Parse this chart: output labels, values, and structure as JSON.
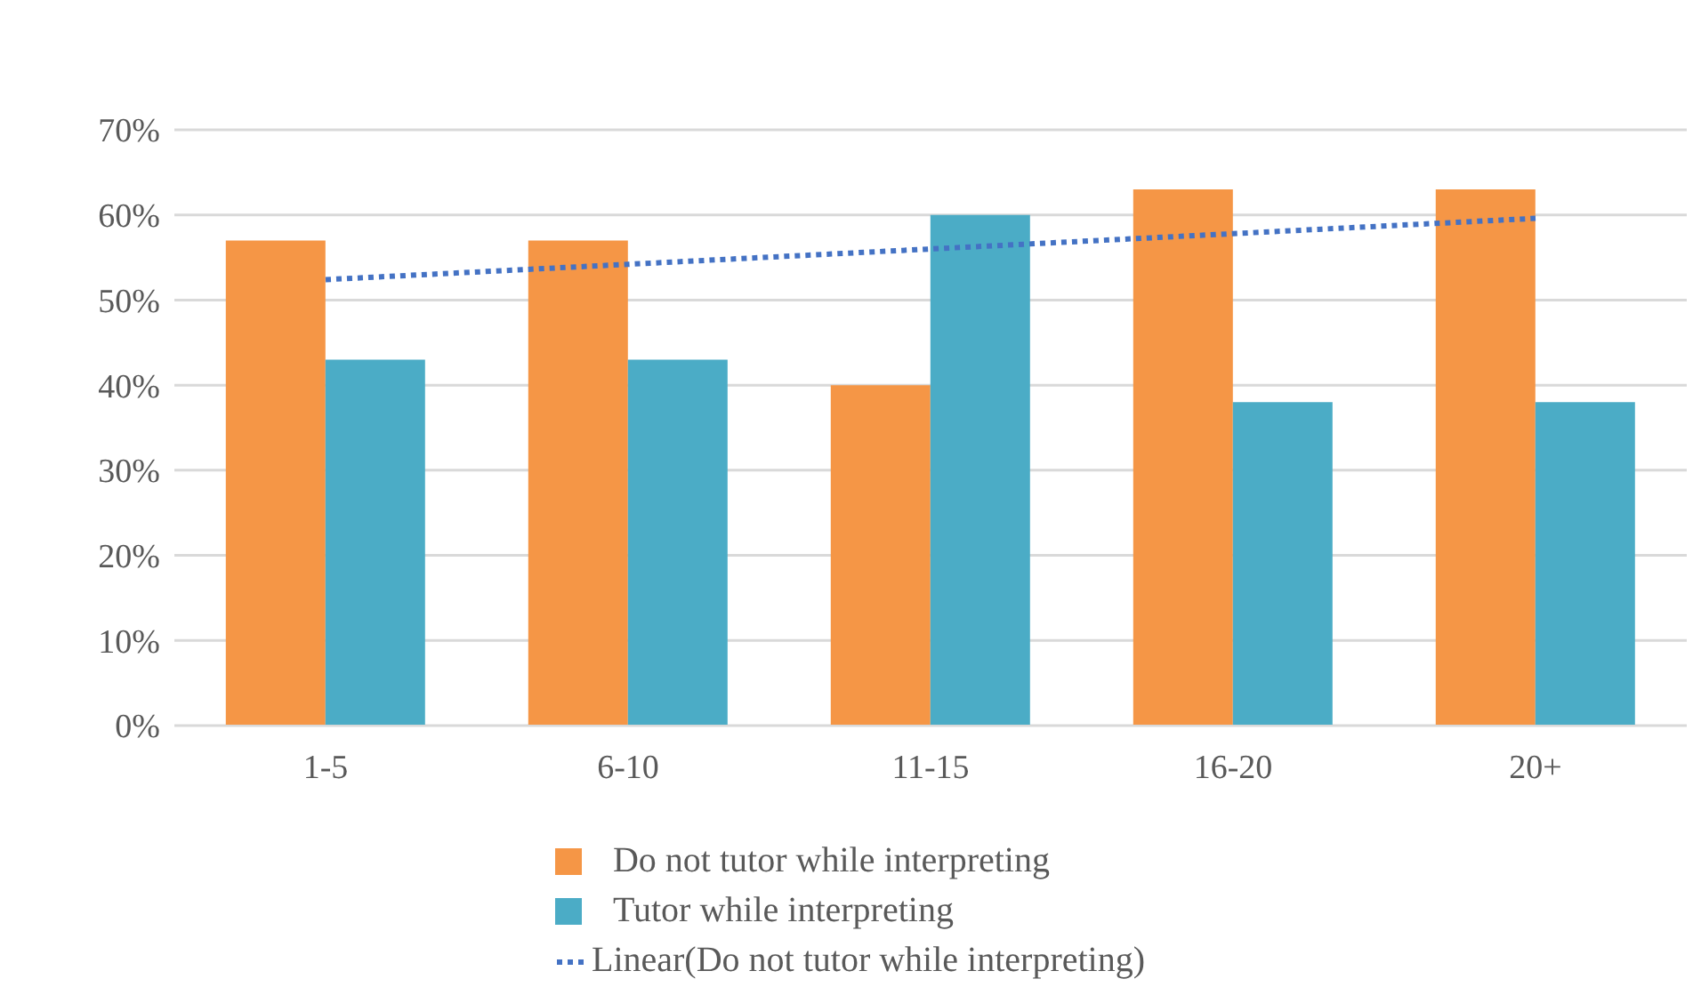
{
  "chart_data": {
    "type": "bar",
    "categories": [
      "1-5",
      "6-10",
      "11-15",
      "16-20",
      "20+"
    ],
    "series": [
      {
        "name": "Do not tutor while interpreting",
        "color": "#f59646",
        "values": [
          57,
          57,
          40,
          63,
          63
        ]
      },
      {
        "name": "Tutor while interpreting",
        "color": "#4bacc6",
        "values": [
          43,
          43,
          60,
          38,
          38
        ]
      },
      {
        "name": "Linear(Do not tutor while interpreting)",
        "type": "line",
        "color": "#4472c4",
        "line_style": "dotted",
        "marker": "none",
        "values": [
          52.4,
          54.2,
          56,
          57.8,
          59.6
        ]
      }
    ],
    "ylim": [
      0,
      70
    ],
    "yticks": [
      {
        "value": 0,
        "label": "0%"
      },
      {
        "value": 10,
        "label": "10%"
      },
      {
        "value": 20,
        "label": "20%"
      },
      {
        "value": 30,
        "label": "30%"
      },
      {
        "value": 40,
        "label": "40%"
      },
      {
        "value": 50,
        "label": "50%"
      },
      {
        "value": 60,
        "label": "60%"
      },
      {
        "value": 70,
        "label": "70%"
      }
    ],
    "grid": "y",
    "legend": "bottom"
  }
}
